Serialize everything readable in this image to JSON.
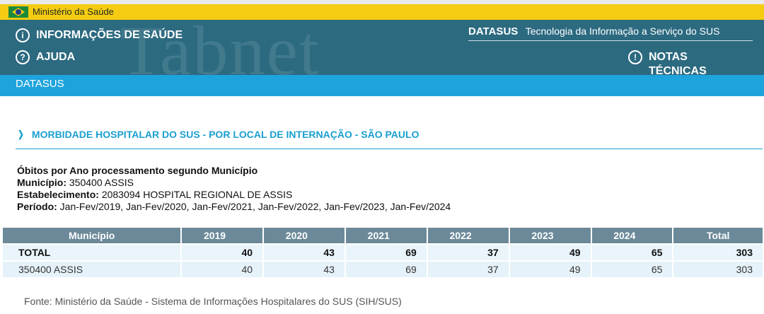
{
  "gov_bar": {
    "name": "Ministério da Saúde"
  },
  "header": {
    "watermark": "Tabnet",
    "nav": {
      "info": "INFORMAÇÕES DE SAÚDE",
      "help": "AJUDA",
      "notes": "NOTAS TÉCNICAS"
    },
    "brand": "DATASUS",
    "tagline": "Tecnologia da Informação a Serviço do SUS"
  },
  "bluebar": {
    "label": "DATASUS"
  },
  "section": {
    "title": "MORBIDADE HOSPITALAR DO SUS - POR LOCAL DE INTERNAÇÃO - SÃO PAULO"
  },
  "meta": {
    "heading": "Óbitos por Ano processamento segundo Município",
    "municipio_label": "Município:",
    "municipio_value": "350400 ASSIS",
    "estabelecimento_label": "Estabelecimento:",
    "estabelecimento_value": "2083094 HOSPITAL REGIONAL DE ASSIS",
    "periodo_label": "Período:",
    "periodo_value": "Jan-Fev/2019, Jan-Fev/2020, Jan-Fev/2021, Jan-Fev/2022, Jan-Fev/2023, Jan-Fev/2024"
  },
  "table": {
    "columns": [
      "Município",
      "2019",
      "2020",
      "2021",
      "2022",
      "2023",
      "2024",
      "Total"
    ],
    "rows": [
      [
        "TOTAL",
        "40",
        "43",
        "69",
        "37",
        "49",
        "65",
        "303"
      ],
      [
        "350400 ASSIS",
        "40",
        "43",
        "69",
        "37",
        "49",
        "65",
        "303"
      ]
    ]
  },
  "source": "Fonte: Ministério da Saúde - Sistema de Informações Hospitalares do SUS (SIH/SUS)",
  "colors": {
    "gov_yellow": "#f6cc12",
    "header_teal": "#2c6a80",
    "accent_blue": "#1ea4dd",
    "table_header": "#6b8999",
    "table_row": "#e6f2f9"
  }
}
